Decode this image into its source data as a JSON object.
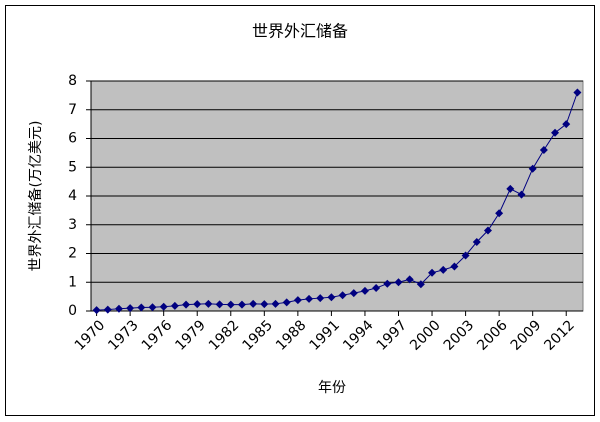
{
  "chart_data": {
    "type": "line",
    "title": "世界外汇储备",
    "x_label": "年份",
    "y_label": "世界外汇储备(万亿美元)",
    "x": [
      1970,
      1971,
      1972,
      1973,
      1974,
      1975,
      1976,
      1977,
      1978,
      1979,
      1980,
      1981,
      1982,
      1983,
      1984,
      1985,
      1986,
      1987,
      1988,
      1989,
      1990,
      1991,
      1992,
      1993,
      1994,
      1995,
      1996,
      1997,
      1998,
      1999,
      2000,
      2001,
      2002,
      2003,
      2004,
      2005,
      2006,
      2007,
      2008,
      2009,
      2010,
      2011,
      2012,
      2013
    ],
    "values": [
      0.03,
      0.05,
      0.08,
      0.1,
      0.12,
      0.13,
      0.15,
      0.18,
      0.22,
      0.24,
      0.25,
      0.23,
      0.22,
      0.22,
      0.25,
      0.24,
      0.25,
      0.3,
      0.38,
      0.42,
      0.45,
      0.48,
      0.55,
      0.62,
      0.7,
      0.8,
      0.95,
      1.0,
      1.1,
      0.93,
      1.33,
      1.43,
      1.55,
      1.93,
      2.4,
      2.8,
      3.4,
      4.25,
      4.05,
      4.95,
      5.6,
      6.2,
      6.5,
      7.6
    ],
    "color": "#000080",
    "plot_background": "#c0c0c0",
    "xlim": [
      1969.5,
      2013.5
    ],
    "xticks": [
      1970,
      1973,
      1976,
      1979,
      1982,
      1985,
      1988,
      1991,
      1994,
      1997,
      2000,
      2003,
      2006,
      2009,
      2012
    ],
    "ylim": [
      0,
      8
    ],
    "yticks": [
      0,
      1,
      2,
      3,
      4,
      5,
      6,
      7,
      8
    ],
    "grid": true
  }
}
